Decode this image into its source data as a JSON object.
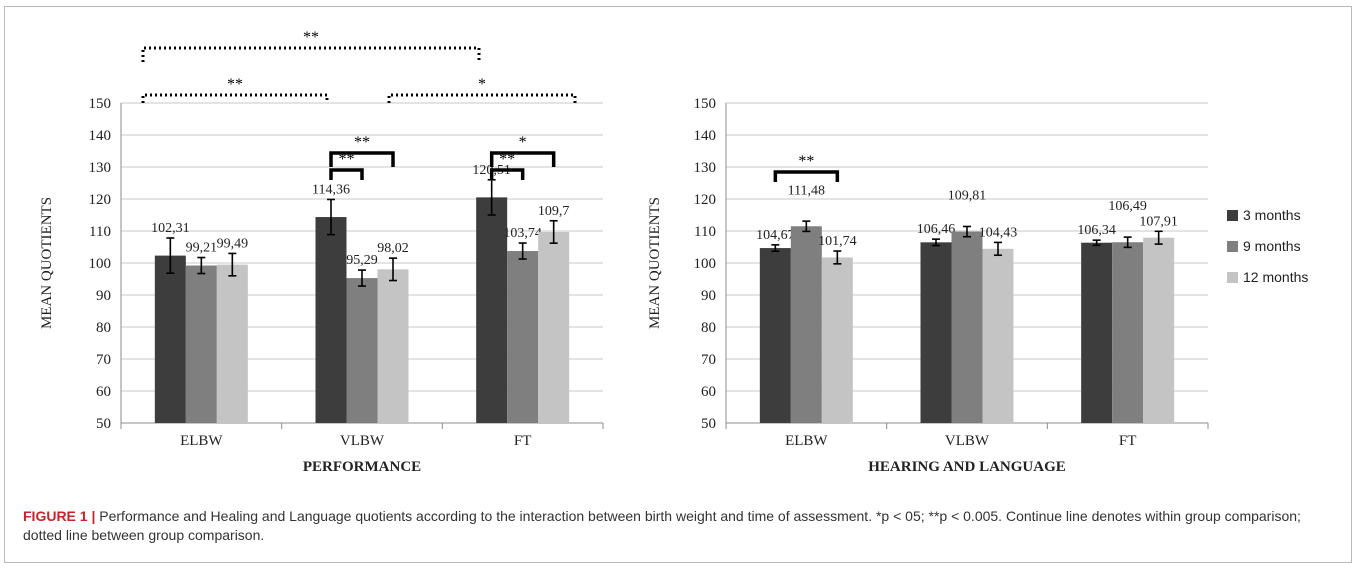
{
  "chart_data": [
    {
      "type": "bar",
      "xlabel": "PERFORMANCE",
      "ylabel": "MEAN QUOTIENTS",
      "ylim": [
        50,
        150
      ],
      "yticks": [
        50,
        60,
        70,
        80,
        90,
        100,
        110,
        120,
        130,
        140,
        150
      ],
      "grid": true,
      "categories": [
        "ELBW",
        "VLBW",
        "FT"
      ],
      "series": [
        {
          "name": "3 months",
          "color": "#3d3d3d",
          "values": [
            102.31,
            114.36,
            120.51
          ],
          "labels": [
            "102,31",
            "114,36",
            "120,51"
          ],
          "errors": [
            5.5,
            5.5,
            5.5
          ]
        },
        {
          "name": "9 months",
          "color": "#7f7f7f",
          "values": [
            99.21,
            95.29,
            103.74
          ],
          "labels": [
            "99,21",
            "95,29",
            "103,74"
          ],
          "errors": [
            2.5,
            2.5,
            2.5
          ]
        },
        {
          "name": "12 months",
          "color": "#c4c4c4",
          "values": [
            99.49,
            98.02,
            109.7
          ],
          "labels": [
            "99,49",
            "98,02",
            "109,7"
          ],
          "errors": [
            3.5,
            3.5,
            3.5
          ]
        }
      ],
      "brackets": [
        {
          "style": "solid",
          "from": [
            1,
            0
          ],
          "to": [
            1,
            1
          ],
          "label": "**"
        },
        {
          "style": "solid",
          "from": [
            1,
            0
          ],
          "to": [
            1,
            2
          ],
          "label": "**"
        },
        {
          "style": "solid",
          "from": [
            2,
            0
          ],
          "to": [
            2,
            1
          ],
          "label": "**"
        },
        {
          "style": "solid",
          "from": [
            2,
            0
          ],
          "to": [
            2,
            2
          ],
          "label": "*"
        },
        {
          "style": "dotted",
          "from": [
            0,
            0
          ],
          "to": [
            1,
            2
          ],
          "label": "**"
        },
        {
          "style": "dotted",
          "from": [
            1,
            2
          ],
          "to": [
            2,
            2
          ],
          "label": "*"
        },
        {
          "style": "dotted",
          "from": [
            0,
            0
          ],
          "to": [
            2,
            0
          ],
          "label": "**"
        }
      ]
    },
    {
      "type": "bar",
      "xlabel": "HEARING AND LANGUAGE",
      "ylabel": "MEAN QUOTIENTS",
      "ylim": [
        50,
        150
      ],
      "yticks": [
        50,
        60,
        70,
        80,
        90,
        100,
        110,
        120,
        130,
        140,
        150
      ],
      "grid": true,
      "legend": "right",
      "categories": [
        "ELBW",
        "VLBW",
        "FT"
      ],
      "series": [
        {
          "name": "3 months",
          "color": "#3d3d3d",
          "values": [
            104.67,
            106.46,
            106.34
          ],
          "labels": [
            "104,67",
            "106,46",
            "106,34"
          ],
          "errors": [
            1,
            1,
            0.8
          ]
        },
        {
          "name": "9 months",
          "color": "#7f7f7f",
          "values": [
            111.48,
            109.81,
            106.49
          ],
          "labels": [
            "111,48",
            "109,81",
            "106,49"
          ],
          "errors": [
            1.6,
            1.6,
            1.6
          ]
        },
        {
          "name": "12 months",
          "color": "#c4c4c4",
          "values": [
            101.74,
            104.43,
            107.91
          ],
          "labels": [
            "101,74",
            "104,43",
            "107,91"
          ],
          "errors": [
            2,
            2,
            2
          ]
        }
      ],
      "brackets": [
        {
          "style": "solid",
          "from": [
            0,
            0
          ],
          "to": [
            0,
            2
          ],
          "label": "**"
        }
      ]
    }
  ],
  "caption": {
    "label": "FIGURE 1 |",
    "text": " Performance and Healing and Language quotients according to the interaction between birth weight and time of assessment. *p < 05; **p < 0.005. Continue line denotes within group comparison; dotted line between group comparison."
  }
}
